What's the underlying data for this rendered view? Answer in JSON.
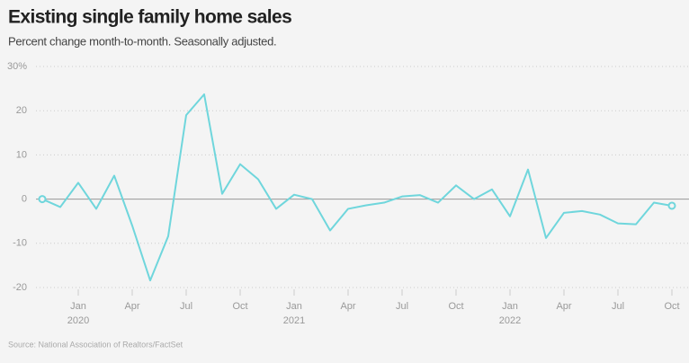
{
  "chart_data": {
    "type": "line",
    "title": "Existing single family home sales",
    "subtitle": "Percent change month-to-month. Seasonally adjusted.",
    "source": "Source: National Association of Realtors/FactSet",
    "categories": [
      null,
      null,
      "Jan",
      null,
      null,
      "Apr",
      null,
      null,
      "Jul",
      null,
      null,
      "Oct",
      null,
      null,
      "Jan",
      null,
      null,
      "Apr",
      null,
      null,
      "Jul",
      null,
      null,
      "Oct",
      null,
      null,
      "Jan",
      null,
      null,
      "Apr",
      null,
      null,
      "Jul",
      null,
      null,
      "Oct"
    ],
    "category_years": [
      null,
      null,
      "2020",
      null,
      null,
      null,
      null,
      null,
      null,
      null,
      null,
      null,
      null,
      null,
      "2021",
      null,
      null,
      null,
      null,
      null,
      null,
      null,
      null,
      null,
      null,
      null,
      "2022",
      null,
      null,
      null,
      null,
      null,
      null,
      null,
      null,
      null
    ],
    "series": [
      {
        "color": "#6fd6dc",
        "values": [
          0,
          -1.8,
          3.7,
          -2.2,
          5.3,
          -6,
          -18.4,
          -8.4,
          19.0,
          23.7,
          1.2,
          7.9,
          4.5,
          -2.2,
          1.0,
          0,
          -7.1,
          -2.2,
          -1.4,
          -0.8,
          0.6,
          0.9,
          -0.8,
          3.1,
          0,
          2.2,
          -3.9,
          6.7,
          -8.8,
          -3.1,
          -2.7,
          -3.5,
          -5.5,
          -5.7,
          -0.8,
          -1.5
        ]
      }
    ],
    "ylim": [
      -20,
      30
    ],
    "yticks": [
      -20,
      -10,
      0,
      10,
      20,
      {
        "value": 30,
        "label": "30%"
      }
    ],
    "grid": true
  }
}
